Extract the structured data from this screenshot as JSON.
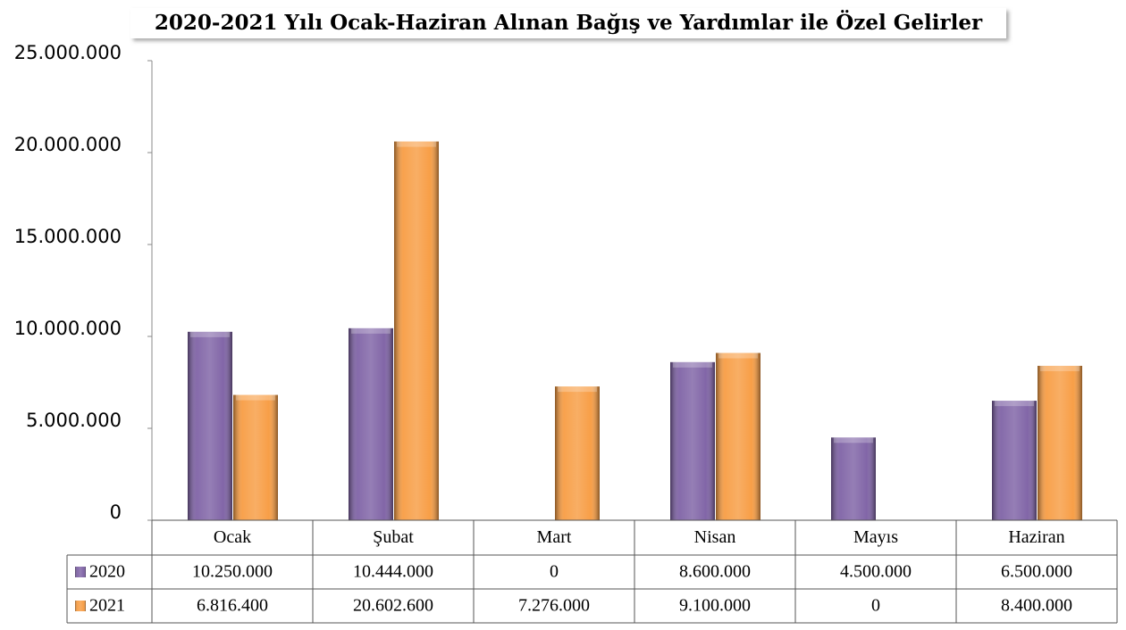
{
  "chart_data": {
    "type": "bar",
    "title": "2020-2021 Yılı Ocak-Haziran Alınan Bağış ve Yardımlar ile Özel Gelirler",
    "categories": [
      "Ocak",
      "Şubat",
      "Mart",
      "Nisan",
      "Mayıs",
      "Haziran"
    ],
    "series": [
      {
        "name": "2020",
        "color": "#7b5ea3",
        "values": [
          10250000,
          10444000,
          0,
          8600000,
          4500000,
          6500000
        ],
        "value_labels": [
          "10.250.000",
          "10.444.000",
          "0",
          "8.600.000",
          "4.500.000",
          "6.500.000"
        ]
      },
      {
        "name": "2021",
        "color": "#f79a3e",
        "values": [
          6816400,
          20602600,
          7276000,
          9100000,
          0,
          8400000
        ],
        "value_labels": [
          "6.816.400",
          "20.602.600",
          "7.276.000",
          "9.100.000",
          "0",
          "8.400.000"
        ]
      }
    ],
    "ylim": [
      0,
      25000000
    ],
    "yticks": [
      0,
      {
        "value": 5000000,
        "label": "5.000.000"
      },
      {
        "value": 10000000,
        "label": "10.000.000"
      },
      {
        "value": 15000000,
        "label": "15.000.000"
      },
      {
        "value": 20000000,
        "label": "20.000.000"
      },
      {
        "value": 25000000,
        "label": "25.000.000"
      }
    ],
    "grid": false
  }
}
